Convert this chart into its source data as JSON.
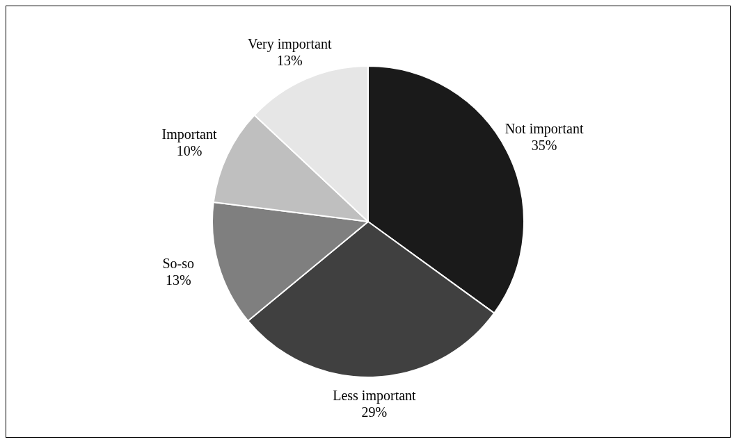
{
  "chart_data": {
    "type": "pie",
    "categories": [
      "Not important",
      "Less important",
      "So-so",
      "Important",
      "Very important"
    ],
    "values": [
      35,
      29,
      13,
      10,
      13
    ],
    "colors": [
      "#1a1a1a",
      "#404040",
      "#7f7f7f",
      "#bfbfbf",
      "#e6e6e6"
    ],
    "value_labels": [
      "35%",
      "29%",
      "13%",
      "10%",
      "13%"
    ],
    "legend": false
  }
}
